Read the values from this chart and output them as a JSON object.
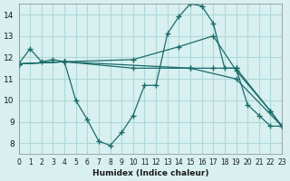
{
  "background_color": "#d8f0f0",
  "grid_color": "#b0d8d8",
  "line_color": "#1a6b6b",
  "xlabel": "Humidex (Indice chaleur)",
  "xlim": [
    0,
    23
  ],
  "ylim": [
    7.5,
    14.5
  ],
  "yticks": [
    8,
    9,
    10,
    11,
    12,
    13,
    14
  ],
  "xticks": [
    0,
    1,
    2,
    3,
    4,
    5,
    6,
    7,
    8,
    9,
    10,
    11,
    12,
    13,
    14,
    15,
    16,
    17,
    18,
    19,
    20,
    21,
    22,
    23
  ],
  "series": [
    {
      "x": [
        0,
        1,
        2,
        3,
        4,
        5,
        6,
        7,
        8,
        9,
        10,
        11,
        12,
        13,
        14,
        15,
        16,
        17,
        18,
        19,
        20,
        21,
        22,
        23
      ],
      "y": [
        11.7,
        12.4,
        11.8,
        11.9,
        11.8,
        10.0,
        9.1,
        8.1,
        7.9,
        8.5,
        9.3,
        10.7,
        10.7,
        13.1,
        13.9,
        14.5,
        14.4,
        13.6,
        11.5,
        11.5,
        9.8,
        9.3,
        8.8,
        8.8
      ]
    },
    {
      "x": [
        0,
        4,
        10,
        14,
        17,
        19,
        22,
        23
      ],
      "y": [
        11.7,
        11.8,
        11.9,
        12.5,
        13.0,
        11.4,
        9.5,
        8.8
      ]
    },
    {
      "x": [
        0,
        4,
        10,
        15,
        17,
        19,
        22,
        23
      ],
      "y": [
        11.7,
        11.8,
        11.5,
        11.5,
        11.5,
        11.5,
        9.5,
        8.8
      ]
    },
    {
      "x": [
        0,
        4,
        15,
        19,
        23
      ],
      "y": [
        11.7,
        11.8,
        11.5,
        11.0,
        8.8
      ]
    }
  ]
}
